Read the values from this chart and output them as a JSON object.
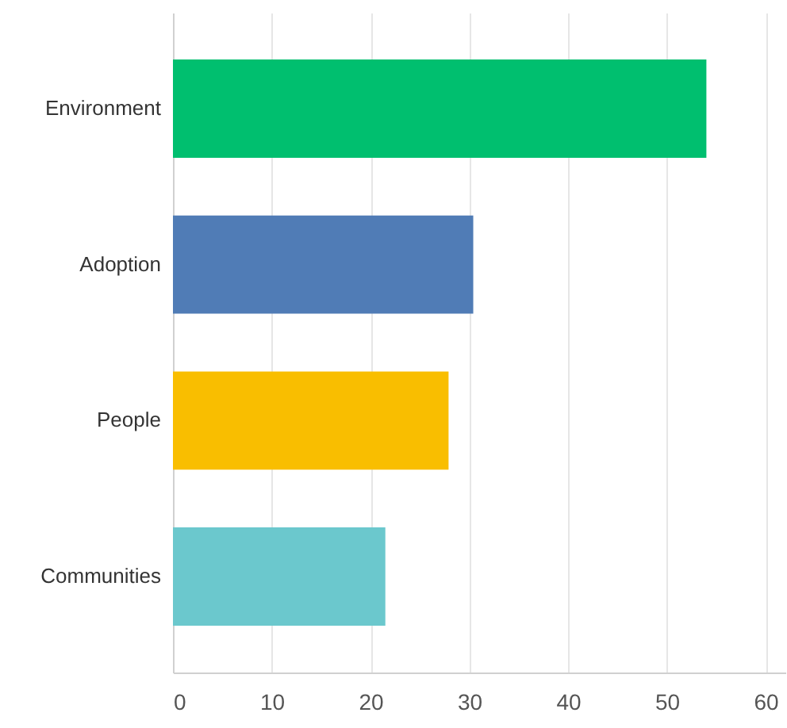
{
  "chart_data": {
    "type": "bar",
    "orientation": "horizontal",
    "categories": [
      "Environment",
      "Adoption",
      "People",
      "Communities"
    ],
    "values": [
      54,
      30.4,
      27.9,
      21.5
    ],
    "colors": [
      "#00bf6f",
      "#507cb6",
      "#f9be00",
      "#6bc8cd"
    ],
    "xlim": [
      0,
      62
    ],
    "xticks": [
      0,
      10,
      20,
      30,
      40,
      50,
      60
    ],
    "grid": "x"
  }
}
